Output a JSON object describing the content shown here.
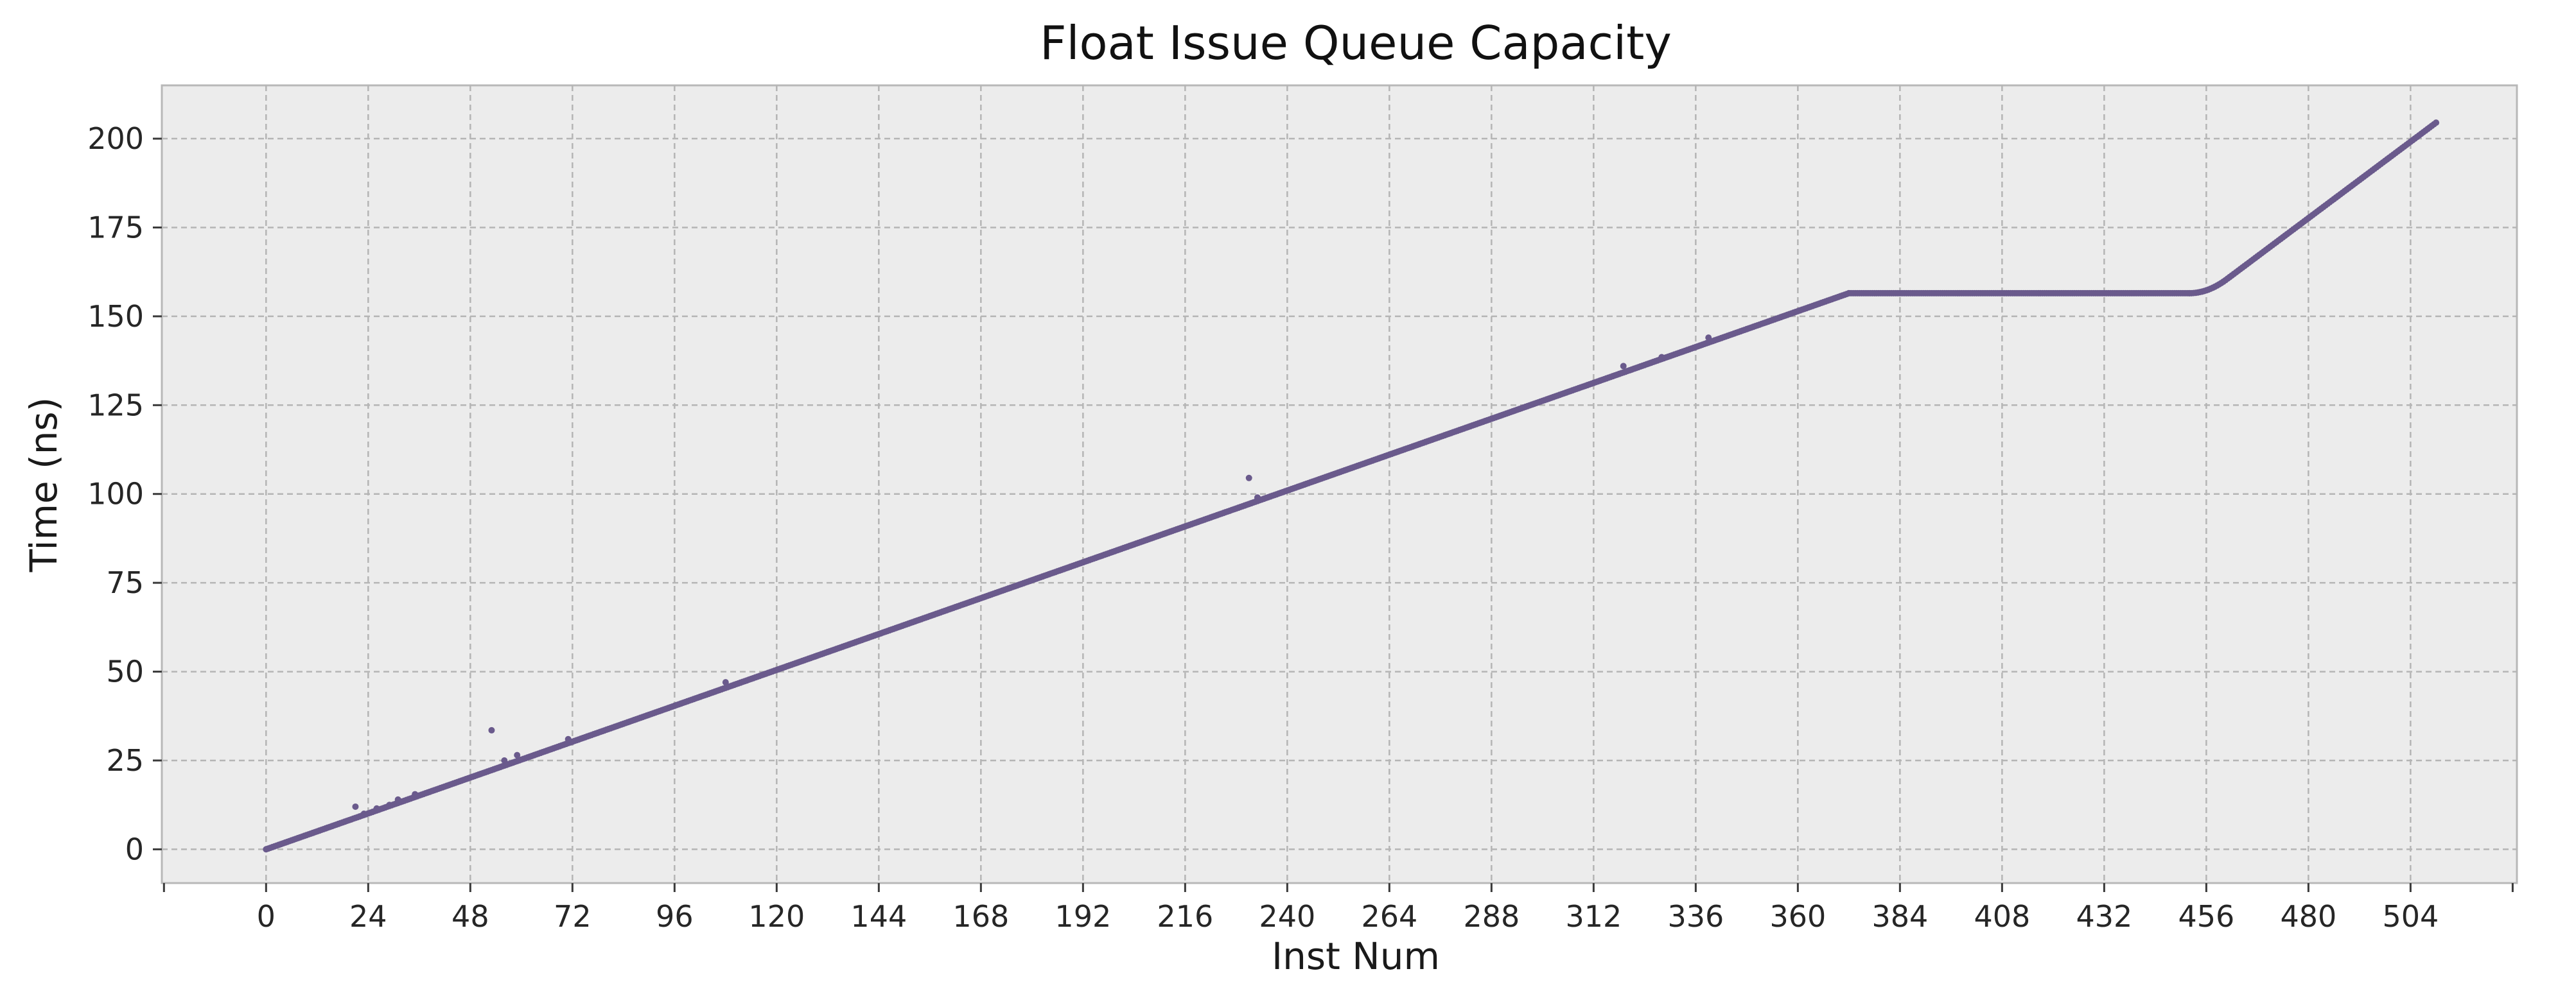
{
  "chart_data": {
    "type": "scatter",
    "title": "Float Issue Queue Capacity",
    "xlabel": "Inst Num",
    "ylabel": "Time (ns)",
    "xlim": [
      -24.5,
      529
    ],
    "ylim": [
      -9.5,
      215
    ],
    "x_ticks": [
      0,
      24,
      48,
      72,
      96,
      120,
      144,
      168,
      192,
      216,
      240,
      264,
      288,
      312,
      336,
      360,
      384,
      408,
      432,
      456,
      480,
      504
    ],
    "y_ticks": [
      0,
      25,
      50,
      75,
      100,
      125,
      150,
      175,
      200
    ],
    "grid": true,
    "marker_color": "#6a5a8c",
    "background_color": "#ececec",
    "segments": [
      {
        "x_start": 0,
        "x_end": 372,
        "y_start": 0,
        "y_end": 156.5,
        "note_shape": "linear"
      },
      {
        "x_start": 372,
        "x_end": 452,
        "y_start": 156.5,
        "y_end": 156.5,
        "note_shape": "flat"
      },
      {
        "x_start": 452,
        "x_end": 510,
        "y_start": 156.5,
        "y_end": 204.5,
        "note_shape": "curved-then-linear"
      }
    ],
    "outliers": [
      {
        "x": 21,
        "y": 12
      },
      {
        "x": 23,
        "y": 10
      },
      {
        "x": 26,
        "y": 11.5
      },
      {
        "x": 29,
        "y": 12.5
      },
      {
        "x": 31,
        "y": 14
      },
      {
        "x": 35,
        "y": 15.5
      },
      {
        "x": 53,
        "y": 33.5
      },
      {
        "x": 56,
        "y": 25
      },
      {
        "x": 59,
        "y": 26.5
      },
      {
        "x": 71,
        "y": 31
      },
      {
        "x": 108,
        "y": 47
      },
      {
        "x": 231,
        "y": 104.5
      },
      {
        "x": 233,
        "y": 99
      },
      {
        "x": 319,
        "y": 136
      },
      {
        "x": 328,
        "y": 138.5
      },
      {
        "x": 339,
        "y": 144
      }
    ]
  }
}
